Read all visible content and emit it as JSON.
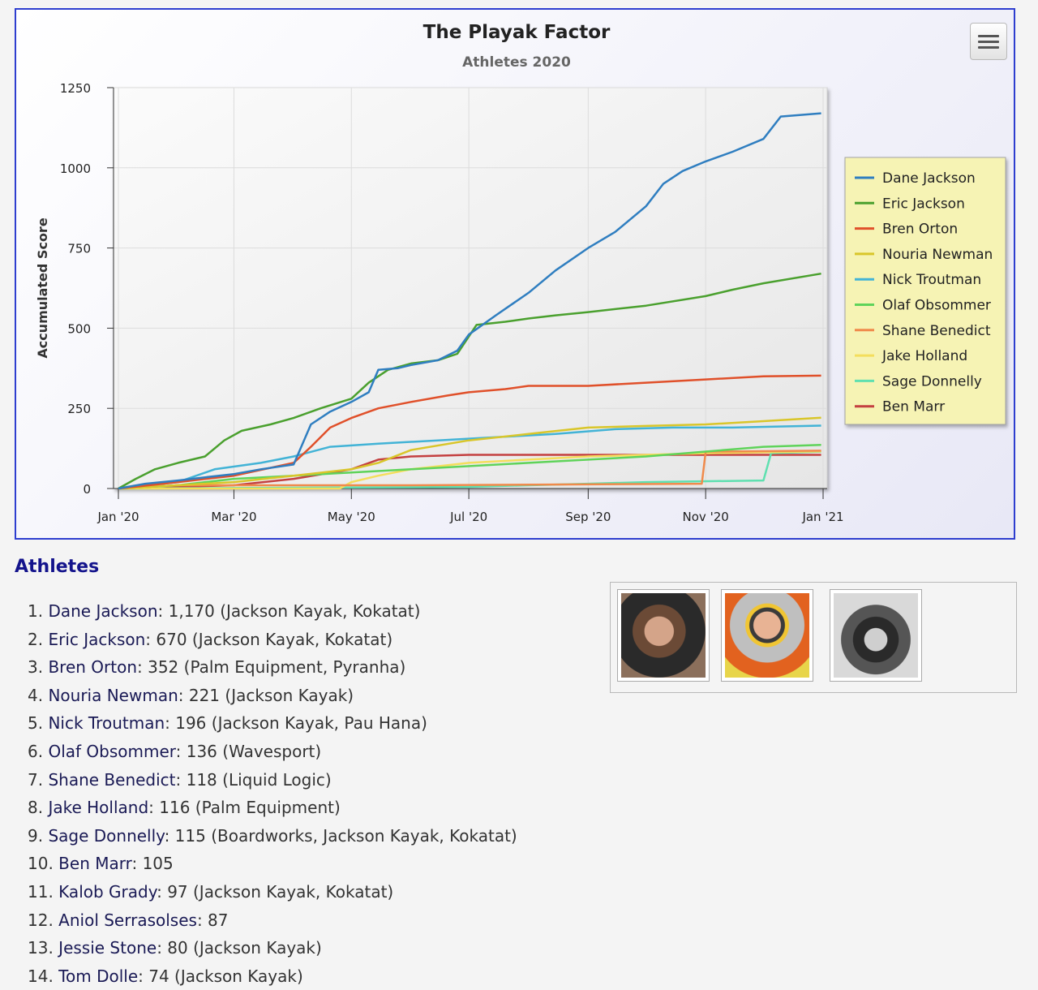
{
  "chart_data": {
    "type": "line",
    "title": "The Playak Factor",
    "subtitle": "Athletes 2020",
    "ylabel": "Accumulated Score",
    "xlabel": "",
    "ylim": [
      0,
      1250
    ],
    "yticks": [
      "0",
      "250",
      "500",
      "750",
      "1000",
      "1250"
    ],
    "xticks": [
      {
        "label": "Jan '20",
        "date": "2020-01-01"
      },
      {
        "label": "Mar '20",
        "date": "2020-03-01"
      },
      {
        "label": "May '20",
        "date": "2020-05-01"
      },
      {
        "label": "Jul '20",
        "date": "2020-07-01"
      },
      {
        "label": "Sep '20",
        "date": "2020-09-01"
      },
      {
        "label": "Nov '20",
        "date": "2020-11-01"
      },
      {
        "label": "Jan '21",
        "date": "2021-01-01"
      }
    ],
    "xlim": [
      "2020-01-01",
      "2021-01-01"
    ],
    "grid": true,
    "legend_position": "right",
    "series": [
      {
        "name": "Dane Jackson",
        "color": "#2f7ec0",
        "points": [
          [
            "2020-01-01",
            0
          ],
          [
            "2020-01-15",
            15
          ],
          [
            "2020-02-01",
            25
          ],
          [
            "2020-02-15",
            35
          ],
          [
            "2020-03-01",
            45
          ],
          [
            "2020-03-15",
            60
          ],
          [
            "2020-04-01",
            75
          ],
          [
            "2020-04-10",
            200
          ],
          [
            "2020-04-20",
            240
          ],
          [
            "2020-05-01",
            270
          ],
          [
            "2020-05-10",
            300
          ],
          [
            "2020-05-15",
            370
          ],
          [
            "2020-05-25",
            375
          ],
          [
            "2020-06-01",
            385
          ],
          [
            "2020-06-15",
            400
          ],
          [
            "2020-06-25",
            430
          ],
          [
            "2020-07-01",
            480
          ],
          [
            "2020-07-15",
            540
          ],
          [
            "2020-08-01",
            610
          ],
          [
            "2020-08-15",
            680
          ],
          [
            "2020-09-01",
            750
          ],
          [
            "2020-09-15",
            800
          ],
          [
            "2020-10-01",
            880
          ],
          [
            "2020-10-10",
            950
          ],
          [
            "2020-10-20",
            990
          ],
          [
            "2020-11-01",
            1020
          ],
          [
            "2020-11-15",
            1050
          ],
          [
            "2020-12-01",
            1090
          ],
          [
            "2020-12-10",
            1160
          ],
          [
            "2020-12-31",
            1170
          ]
        ]
      },
      {
        "name": "Eric Jackson",
        "color": "#4aa02e",
        "points": [
          [
            "2020-01-01",
            0
          ],
          [
            "2020-01-10",
            30
          ],
          [
            "2020-01-20",
            60
          ],
          [
            "2020-02-01",
            80
          ],
          [
            "2020-02-15",
            100
          ],
          [
            "2020-02-25",
            150
          ],
          [
            "2020-03-05",
            180
          ],
          [
            "2020-03-20",
            200
          ],
          [
            "2020-04-01",
            220
          ],
          [
            "2020-04-15",
            250
          ],
          [
            "2020-05-01",
            280
          ],
          [
            "2020-05-10",
            330
          ],
          [
            "2020-05-20",
            370
          ],
          [
            "2020-06-01",
            390
          ],
          [
            "2020-06-15",
            400
          ],
          [
            "2020-06-25",
            420
          ],
          [
            "2020-07-05",
            510
          ],
          [
            "2020-07-20",
            520
          ],
          [
            "2020-08-01",
            530
          ],
          [
            "2020-08-15",
            540
          ],
          [
            "2020-09-01",
            550
          ],
          [
            "2020-10-01",
            570
          ],
          [
            "2020-11-01",
            600
          ],
          [
            "2020-11-15",
            620
          ],
          [
            "2020-12-01",
            640
          ],
          [
            "2020-12-31",
            670
          ]
        ]
      },
      {
        "name": "Bren Orton",
        "color": "#e0502a",
        "points": [
          [
            "2020-01-01",
            0
          ],
          [
            "2020-02-01",
            20
          ],
          [
            "2020-03-01",
            40
          ],
          [
            "2020-04-01",
            80
          ],
          [
            "2020-04-10",
            130
          ],
          [
            "2020-04-20",
            190
          ],
          [
            "2020-05-01",
            220
          ],
          [
            "2020-05-15",
            250
          ],
          [
            "2020-06-01",
            270
          ],
          [
            "2020-06-20",
            290
          ],
          [
            "2020-07-01",
            300
          ],
          [
            "2020-07-20",
            310
          ],
          [
            "2020-08-01",
            320
          ],
          [
            "2020-09-01",
            320
          ],
          [
            "2020-10-01",
            330
          ],
          [
            "2020-11-01",
            340
          ],
          [
            "2020-12-01",
            350
          ],
          [
            "2020-12-31",
            352
          ]
        ]
      },
      {
        "name": "Nouria Newman",
        "color": "#d9c62a",
        "points": [
          [
            "2020-01-01",
            0
          ],
          [
            "2020-03-01",
            20
          ],
          [
            "2020-04-01",
            40
          ],
          [
            "2020-05-01",
            60
          ],
          [
            "2020-05-15",
            80
          ],
          [
            "2020-06-01",
            120
          ],
          [
            "2020-07-01",
            150
          ],
          [
            "2020-08-01",
            170
          ],
          [
            "2020-09-01",
            190
          ],
          [
            "2020-10-01",
            195
          ],
          [
            "2020-11-01",
            200
          ],
          [
            "2020-12-01",
            210
          ],
          [
            "2020-12-31",
            221
          ]
        ]
      },
      {
        "name": "Nick Troutman",
        "color": "#42b3d6",
        "points": [
          [
            "2020-01-01",
            0
          ],
          [
            "2020-02-01",
            20
          ],
          [
            "2020-02-20",
            60
          ],
          [
            "2020-03-15",
            80
          ],
          [
            "2020-04-01",
            100
          ],
          [
            "2020-04-20",
            130
          ],
          [
            "2020-05-15",
            140
          ],
          [
            "2020-06-15",
            150
          ],
          [
            "2020-07-15",
            160
          ],
          [
            "2020-08-15",
            170
          ],
          [
            "2020-09-15",
            185
          ],
          [
            "2020-10-15",
            190
          ],
          [
            "2020-11-15",
            190
          ],
          [
            "2020-12-31",
            196
          ]
        ]
      },
      {
        "name": "Olaf Obsommer",
        "color": "#5fd35a",
        "points": [
          [
            "2020-01-01",
            0
          ],
          [
            "2020-02-01",
            10
          ],
          [
            "2020-03-01",
            30
          ],
          [
            "2020-04-01",
            40
          ],
          [
            "2020-06-01",
            60
          ],
          [
            "2020-08-01",
            80
          ],
          [
            "2020-10-01",
            100
          ],
          [
            "2020-12-01",
            130
          ],
          [
            "2020-12-31",
            136
          ]
        ]
      },
      {
        "name": "Shane Benedict",
        "color": "#f08a4b",
        "points": [
          [
            "2020-01-01",
            0
          ],
          [
            "2020-02-01",
            10
          ],
          [
            "2020-06-01",
            10
          ],
          [
            "2020-10-30",
            15
          ],
          [
            "2020-11-01",
            115
          ],
          [
            "2020-12-31",
            118
          ]
        ]
      },
      {
        "name": "Jake Holland",
        "color": "#f4de5c",
        "points": [
          [
            "2020-01-01",
            0
          ],
          [
            "2020-04-25",
            0
          ],
          [
            "2020-05-01",
            20
          ],
          [
            "2020-05-15",
            40
          ],
          [
            "2020-06-01",
            60
          ],
          [
            "2020-07-01",
            80
          ],
          [
            "2020-08-01",
            90
          ],
          [
            "2020-09-01",
            100
          ],
          [
            "2020-10-01",
            105
          ],
          [
            "2020-11-01",
            110
          ],
          [
            "2020-12-31",
            116
          ]
        ]
      },
      {
        "name": "Sage Donnelly",
        "color": "#5fe0b0",
        "points": [
          [
            "2020-01-01",
            0
          ],
          [
            "2020-07-01",
            5
          ],
          [
            "2020-08-01",
            10
          ],
          [
            "2020-09-01",
            15
          ],
          [
            "2020-10-01",
            20
          ],
          [
            "2020-12-01",
            25
          ],
          [
            "2020-12-05",
            110
          ],
          [
            "2020-12-31",
            115
          ]
        ]
      },
      {
        "name": "Ben Marr",
        "color": "#c44040",
        "points": [
          [
            "2020-01-01",
            0
          ],
          [
            "2020-03-01",
            10
          ],
          [
            "2020-04-01",
            30
          ],
          [
            "2020-05-01",
            60
          ],
          [
            "2020-05-15",
            90
          ],
          [
            "2020-06-01",
            100
          ],
          [
            "2020-07-01",
            105
          ],
          [
            "2020-12-31",
            105
          ]
        ]
      }
    ]
  },
  "menu": {
    "icon": "hamburger-menu-icon"
  },
  "athletes_section": {
    "title": "Athletes",
    "items": [
      {
        "rank": "1. ",
        "name": "Dane Jackson",
        "detail": ": 1,170 (Jackson Kayak, Kokatat)"
      },
      {
        "rank": "2. ",
        "name": "Eric Jackson",
        "detail": ": 670 (Jackson Kayak, Kokatat)"
      },
      {
        "rank": "3. ",
        "name": "Bren Orton",
        "detail": ": 352 (Palm Equipment, Pyranha)"
      },
      {
        "rank": "4. ",
        "name": "Nouria Newman",
        "detail": ": 221 (Jackson Kayak)"
      },
      {
        "rank": "5. ",
        "name": "Nick Troutman",
        "detail": ": 196 (Jackson Kayak, Pau Hana)"
      },
      {
        "rank": "6. ",
        "name": "Olaf Obsommer",
        "detail": ": 136 (Wavesport)"
      },
      {
        "rank": "7. ",
        "name": "Shane Benedict",
        "detail": ": 118 (Liquid Logic)"
      },
      {
        "rank": "8. ",
        "name": "Jake Holland",
        "detail": ": 116 (Palm Equipment)"
      },
      {
        "rank": "9. ",
        "name": "Sage Donnelly",
        "detail": ": 115 (Boardworks, Jackson Kayak, Kokatat)"
      },
      {
        "rank": "10. ",
        "name": "Ben Marr",
        "detail": ": 105"
      },
      {
        "rank": "11. ",
        "name": "Kalob Grady",
        "detail": ": 97 (Jackson Kayak, Kokatat)"
      },
      {
        "rank": "12. ",
        "name": "Aniol Serrasolses",
        "detail": ": 87"
      },
      {
        "rank": "13. ",
        "name": "Jessie Stone",
        "detail": ": 80 (Jackson Kayak)"
      },
      {
        "rank": "14. ",
        "name": "Tom Dolle",
        "detail": ": 74 (Jackson Kayak)"
      }
    ]
  },
  "photos": [
    {
      "name": "athlete-photo-1",
      "tone": "#6b4a36"
    },
    {
      "name": "athlete-photo-2",
      "tone": "#d9782c"
    },
    {
      "name": "athlete-photo-3",
      "tone": "#3a3a3a"
    }
  ]
}
